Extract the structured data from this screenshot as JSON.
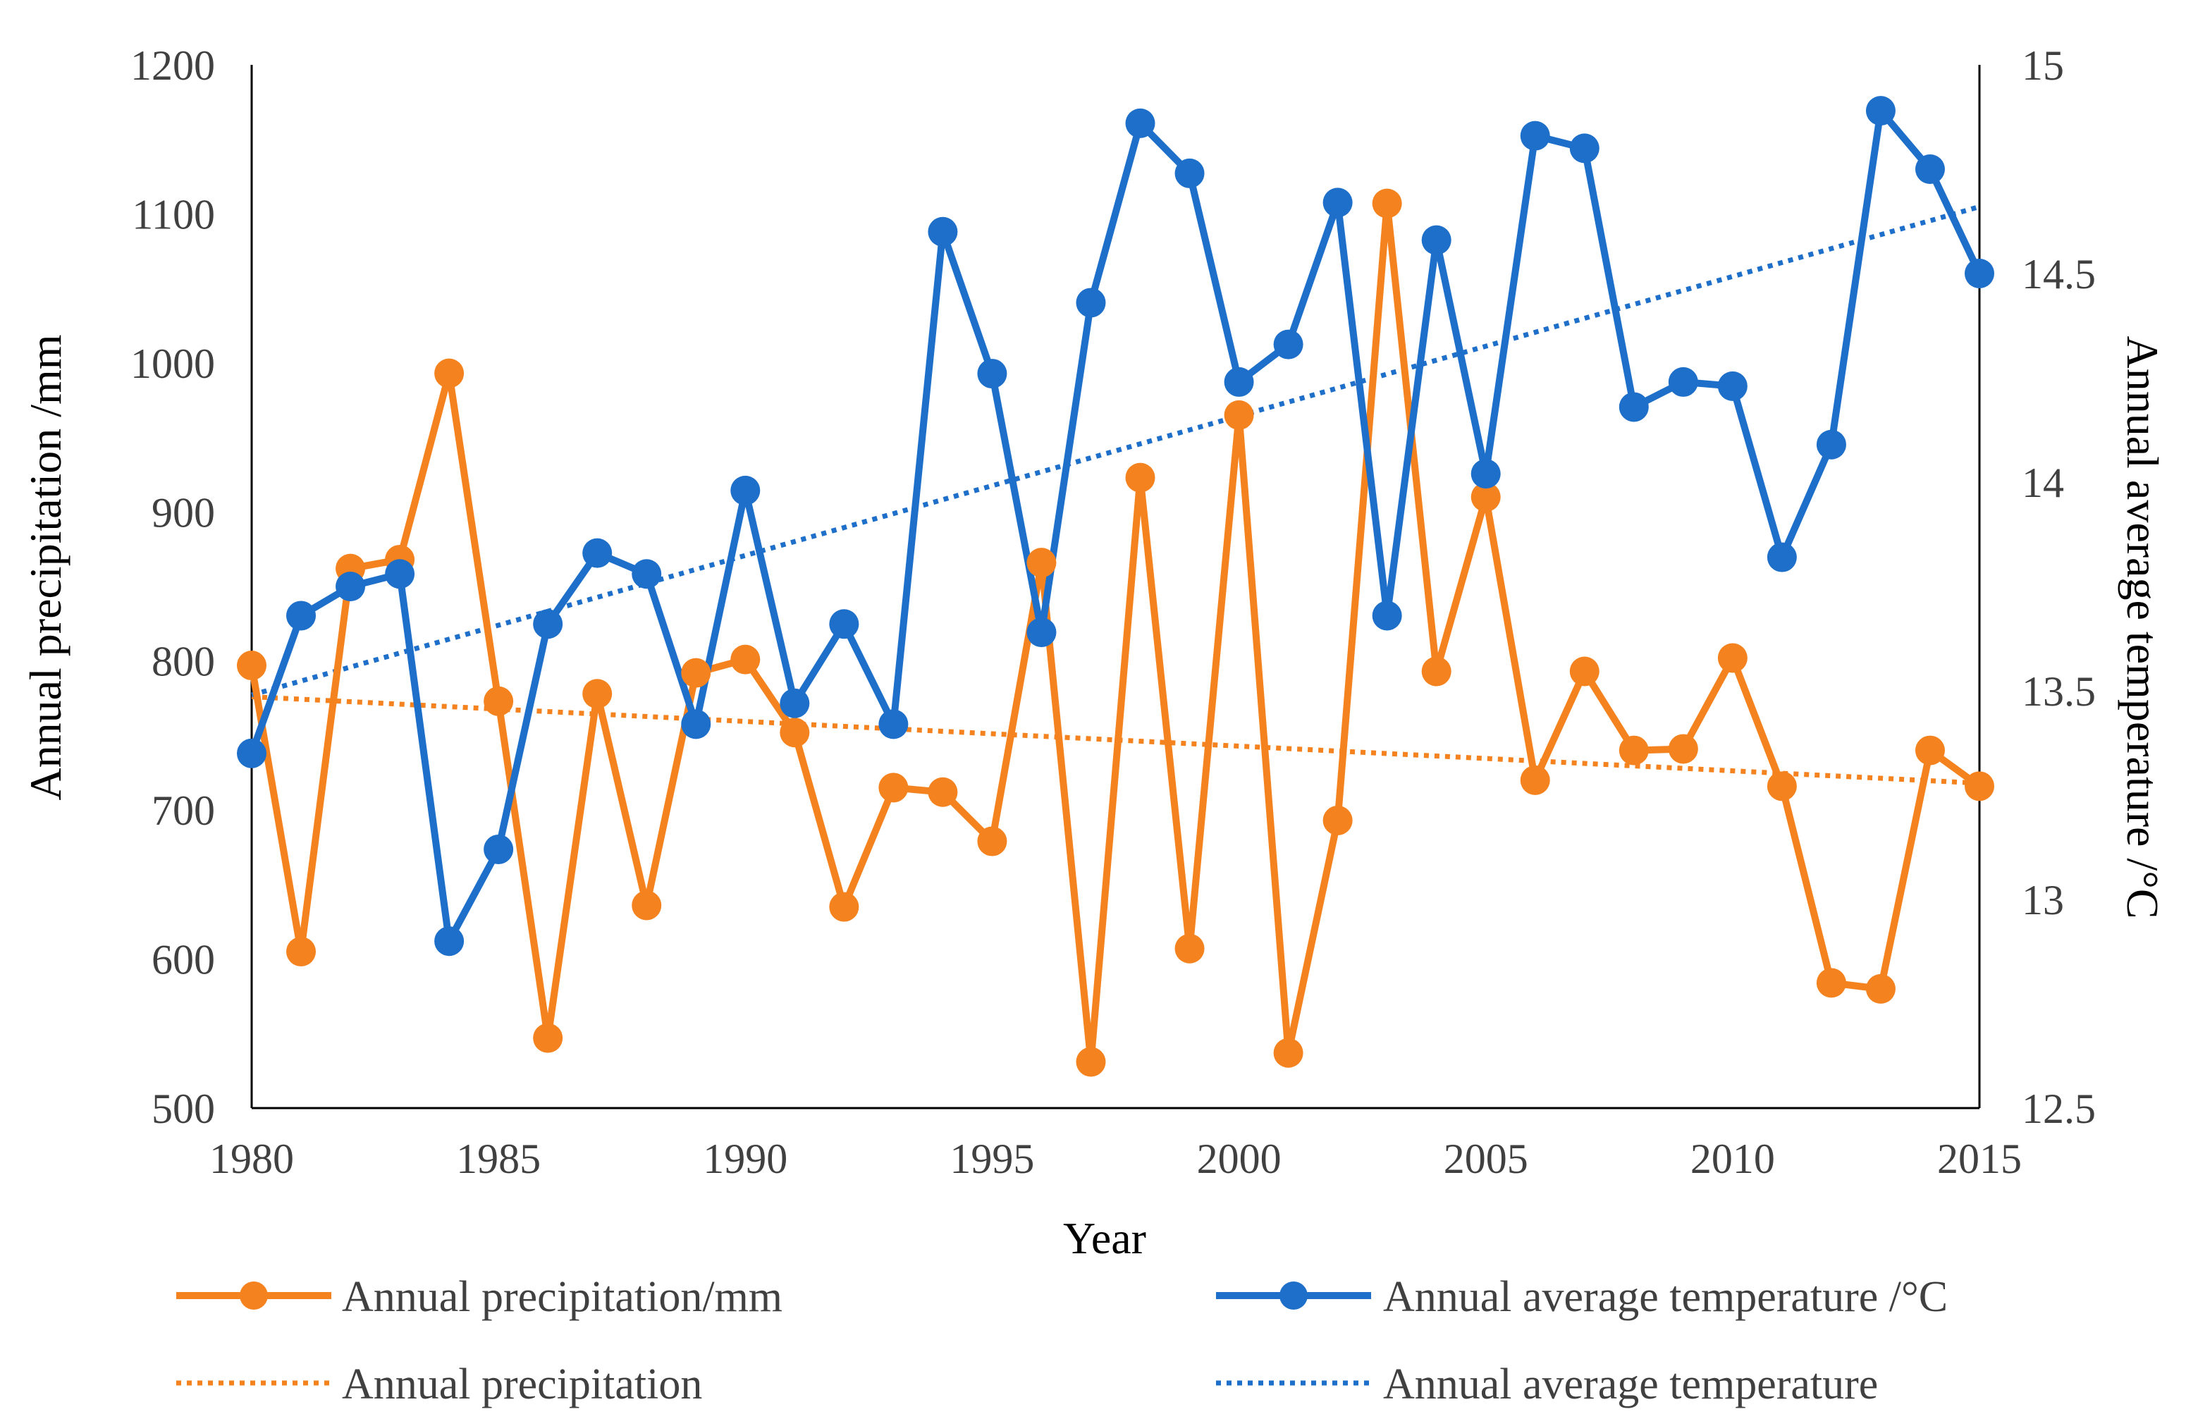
{
  "chart_data": {
    "type": "line",
    "xlabel": "Year",
    "ylabel_left": "Annual precipitation  /mm",
    "ylabel_right": "Annual average temperature   /°C",
    "xlim": [
      1980,
      2015
    ],
    "ylim_left": [
      500,
      1200
    ],
    "ylim_right": [
      12.5,
      15
    ],
    "x_ticks": [
      1980,
      1985,
      1990,
      1995,
      2000,
      2005,
      2010,
      2015
    ],
    "y_left_ticks": [
      500,
      600,
      700,
      800,
      900,
      1000,
      1100,
      1200
    ],
    "y_right_ticks": [
      12.5,
      13,
      13.5,
      14,
      14.5,
      15
    ],
    "x_tick_labels": [
      "1980",
      "1985",
      "1990",
      "1995",
      "2000",
      "2005",
      "2010",
      "2015"
    ],
    "y_left_tick_labels": [
      "500",
      "600",
      "700",
      "800",
      "900",
      "1000",
      "1100",
      "1200"
    ],
    "y_right_tick_labels": [
      "12.5",
      "13",
      "13.5",
      "14",
      "14.5",
      "15"
    ],
    "x": [
      1980,
      1981,
      1982,
      1983,
      1984,
      1985,
      1986,
      1987,
      1988,
      1989,
      1990,
      1991,
      1992,
      1993,
      1994,
      1995,
      1996,
      1997,
      1998,
      1999,
      2000,
      2001,
      2002,
      2003,
      2004,
      2005,
      2006,
      2007,
      2008,
      2009,
      2010,
      2011,
      2012,
      2013,
      2014,
      2015
    ],
    "series": [
      {
        "name": "Annual precipitation/mm",
        "axis": "left",
        "color": "#F4831F",
        "values": [
          797,
          605,
          862,
          868,
          993,
          773,
          547,
          778,
          636,
          792,
          801,
          752,
          635,
          715,
          712,
          679,
          866,
          531,
          923,
          607,
          965,
          537,
          693,
          1107,
          793,
          910,
          720,
          793,
          740,
          741,
          802,
          716,
          584,
          580,
          740,
          716
        ]
      },
      {
        "name": "Annual average temperature  /°C",
        "axis": "right",
        "color": "#1E6FC9",
        "values": [
          13.35,
          13.68,
          13.75,
          13.78,
          12.9,
          13.12,
          13.66,
          13.83,
          13.78,
          13.42,
          13.98,
          13.47,
          13.66,
          13.42,
          14.6,
          14.26,
          13.64,
          14.43,
          14.86,
          14.74,
          14.24,
          14.33,
          14.67,
          13.68,
          14.58,
          14.02,
          14.83,
          14.8,
          14.18,
          14.24,
          14.23,
          13.82,
          14.09,
          14.89,
          14.75,
          14.5
        ]
      }
    ],
    "trendlines": [
      {
        "name": "Annual precipitation",
        "axis": "left",
        "color": "#F4831F",
        "x": [
          1980,
          2015
        ],
        "values": [
          776,
          718
        ]
      },
      {
        "name": "Annual average temperature",
        "axis": "right",
        "color": "#1E6FC9",
        "x": [
          1980,
          2015
        ],
        "values": [
          13.49,
          14.66
        ]
      }
    ],
    "legend": {
      "position": "bottom",
      "entries": [
        {
          "label": "Annual precipitation/mm",
          "style": "line-marker",
          "color": "#F4831F"
        },
        {
          "label": "Annual average temperature  /°C",
          "style": "line-marker",
          "color": "#1E6FC9"
        },
        {
          "label": "Annual precipitation",
          "style": "dotted",
          "color": "#F4831F"
        },
        {
          "label": "Annual average temperature",
          "style": "dotted",
          "color": "#1E6FC9"
        }
      ]
    },
    "grid": false
  }
}
